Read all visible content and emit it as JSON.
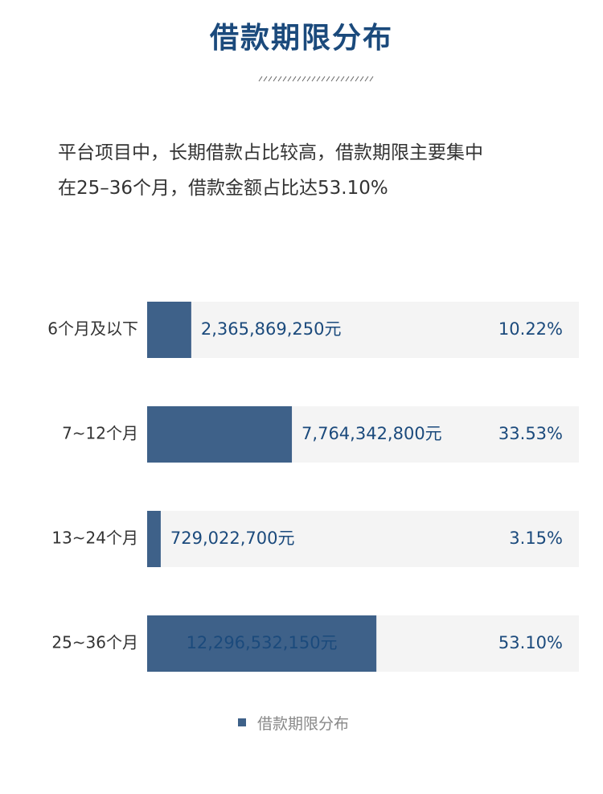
{
  "title": "借款期限分布",
  "intro": {
    "line1": "平台项目中，长期借款占比较高，借款期限主要集中",
    "line2": "在25–36个月，借款金额占比达53.10%"
  },
  "colors": {
    "title": "#1b4a7c",
    "bar": "#3e6189",
    "track": "#f4f4f4",
    "value_text": "#1b4a7c",
    "label_text": "#333333",
    "legend_text": "#888888"
  },
  "chart_data": {
    "type": "bar",
    "orientation": "horizontal",
    "categories": [
      "6个月及以下",
      "7~12个月",
      "13~24个月",
      "25~36个月"
    ],
    "series": [
      {
        "name": "借款期限分布",
        "values": [
          10.22,
          33.53,
          3.15,
          53.1
        ],
        "value_labels": [
          "2,365,869,250元",
          "7,764,342,800元",
          "729,022,700元",
          "12,296,532,150元"
        ],
        "percent_labels": [
          "10.22%",
          "33.53%",
          "3.15%",
          "53.10%"
        ]
      }
    ],
    "xlim": [
      0,
      100
    ],
    "grid": false,
    "legend_position": "bottom-center"
  }
}
